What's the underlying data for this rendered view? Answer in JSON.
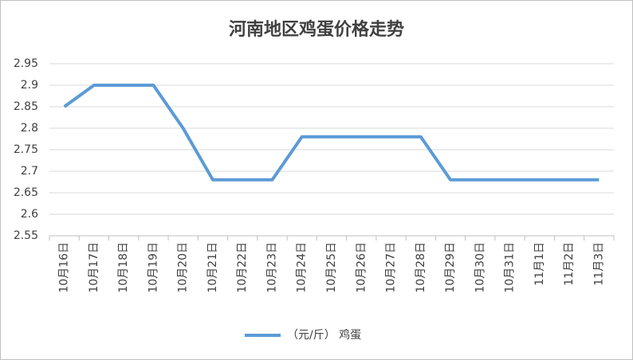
{
  "chart_data": {
    "type": "line",
    "title": "河南地区鸡蛋价格走势",
    "categories": [
      "10月16日",
      "10月17日",
      "10月18日",
      "10月19日",
      "10月20日",
      "10月21日",
      "10月22日",
      "10月23日",
      "10月24日",
      "10月25日",
      "10月26日",
      "10月27日",
      "10月28日",
      "10月29日",
      "10月30日",
      "10月31日",
      "11月1日",
      "11月2日",
      "11月3日"
    ],
    "series": [
      {
        "name": "（元/斤） 鸡蛋",
        "color": "#5b9bd5",
        "values": [
          2.85,
          2.9,
          2.9,
          2.9,
          2.8,
          2.68,
          2.68,
          2.68,
          2.78,
          2.78,
          2.78,
          2.78,
          2.78,
          2.68,
          2.68,
          2.68,
          2.68,
          2.68,
          2.68
        ]
      }
    ],
    "ylim": [
      2.55,
      2.95
    ],
    "yticks": [
      2.55,
      2.6,
      2.65,
      2.7,
      2.75,
      2.8,
      2.85,
      2.9,
      2.95
    ],
    "grid": true,
    "legend": "bottom"
  }
}
